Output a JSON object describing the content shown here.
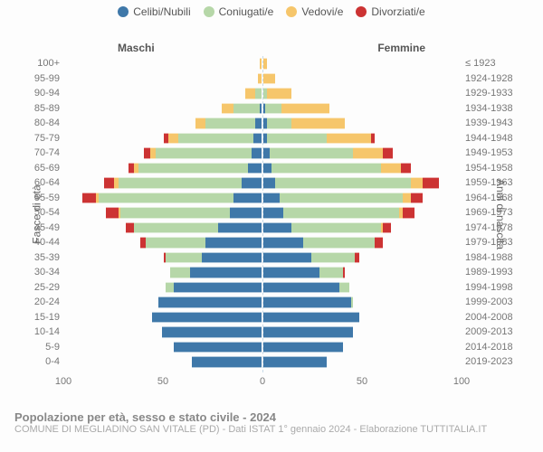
{
  "legend": [
    {
      "label": "Celibi/Nubili",
      "color": "#3f78a9"
    },
    {
      "label": "Coniugati/e",
      "color": "#b6d7a8"
    },
    {
      "label": "Vedovi/e",
      "color": "#f6c66b"
    },
    {
      "label": "Divorziati/e",
      "color": "#cc3333"
    }
  ],
  "columns": {
    "left": "Maschi",
    "right": "Femmine"
  },
  "axes": {
    "left_title": "Fasce di età",
    "right_title": "Anni di nascita",
    "x_ticks": [
      100,
      50,
      0,
      50,
      100
    ],
    "x_max": 100
  },
  "rows": [
    {
      "age": "100+",
      "born": "≤ 1923",
      "m": [
        0,
        0,
        1,
        0
      ],
      "f": [
        0,
        0,
        2,
        0
      ]
    },
    {
      "age": "95-99",
      "born": "1924-1928",
      "m": [
        0,
        0,
        2,
        0
      ],
      "f": [
        0,
        0,
        6,
        0
      ]
    },
    {
      "age": "90-94",
      "born": "1929-1933",
      "m": [
        0,
        3,
        5,
        0
      ],
      "f": [
        0,
        2,
        12,
        0
      ]
    },
    {
      "age": "85-89",
      "born": "1934-1938",
      "m": [
        1,
        13,
        6,
        0
      ],
      "f": [
        1,
        8,
        24,
        0
      ]
    },
    {
      "age": "80-84",
      "born": "1939-1943",
      "m": [
        3,
        25,
        5,
        0
      ],
      "f": [
        2,
        12,
        27,
        0
      ]
    },
    {
      "age": "75-79",
      "born": "1944-1948",
      "m": [
        4,
        38,
        5,
        2
      ],
      "f": [
        2,
        30,
        22,
        2
      ]
    },
    {
      "age": "70-74",
      "born": "1949-1953",
      "m": [
        5,
        48,
        3,
        3
      ],
      "f": [
        3,
        42,
        15,
        5
      ]
    },
    {
      "age": "65-69",
      "born": "1954-1958",
      "m": [
        7,
        55,
        2,
        3
      ],
      "f": [
        4,
        55,
        10,
        5
      ]
    },
    {
      "age": "60-64",
      "born": "1959-1963",
      "m": [
        10,
        62,
        2,
        5
      ],
      "f": [
        6,
        68,
        6,
        8
      ]
    },
    {
      "age": "55-59",
      "born": "1964-1968",
      "m": [
        14,
        68,
        1,
        7
      ],
      "f": [
        8,
        62,
        4,
        6
      ]
    },
    {
      "age": "50-54",
      "born": "1969-1973",
      "m": [
        16,
        55,
        1,
        6
      ],
      "f": [
        10,
        58,
        2,
        6
      ]
    },
    {
      "age": "45-49",
      "born": "1974-1978",
      "m": [
        22,
        42,
        0,
        4
      ],
      "f": [
        14,
        45,
        1,
        4
      ]
    },
    {
      "age": "40-44",
      "born": "1979-1983",
      "m": [
        28,
        30,
        0,
        3
      ],
      "f": [
        20,
        36,
        0,
        4
      ]
    },
    {
      "age": "35-39",
      "born": "1984-1988",
      "m": [
        30,
        18,
        0,
        1
      ],
      "f": [
        24,
        22,
        0,
        2
      ]
    },
    {
      "age": "30-34",
      "born": "1989-1993",
      "m": [
        36,
        10,
        0,
        0
      ],
      "f": [
        28,
        12,
        0,
        1
      ]
    },
    {
      "age": "25-29",
      "born": "1994-1998",
      "m": [
        44,
        4,
        0,
        0
      ],
      "f": [
        38,
        5,
        0,
        0
      ]
    },
    {
      "age": "20-24",
      "born": "1999-2003",
      "m": [
        52,
        0,
        0,
        0
      ],
      "f": [
        44,
        1,
        0,
        0
      ]
    },
    {
      "age": "15-19",
      "born": "2004-2008",
      "m": [
        55,
        0,
        0,
        0
      ],
      "f": [
        48,
        0,
        0,
        0
      ]
    },
    {
      "age": "10-14",
      "born": "2009-2013",
      "m": [
        50,
        0,
        0,
        0
      ],
      "f": [
        45,
        0,
        0,
        0
      ]
    },
    {
      "age": "5-9",
      "born": "2014-2018",
      "m": [
        44,
        0,
        0,
        0
      ],
      "f": [
        40,
        0,
        0,
        0
      ]
    },
    {
      "age": "0-4",
      "born": "2019-2023",
      "m": [
        35,
        0,
        0,
        0
      ],
      "f": [
        32,
        0,
        0,
        0
      ]
    }
  ],
  "footer": {
    "title": "Popolazione per età, sesso e stato civile - 2024",
    "subtitle": "COMUNE DI MEGLIADINO SAN VITALE (PD) - Dati ISTAT 1° gennaio 2024 - Elaborazione TUTTITALIA.IT"
  },
  "colors": {
    "background": "#fdfdfd",
    "grid": "#eeeeee",
    "center_line": "#c8dae8"
  }
}
